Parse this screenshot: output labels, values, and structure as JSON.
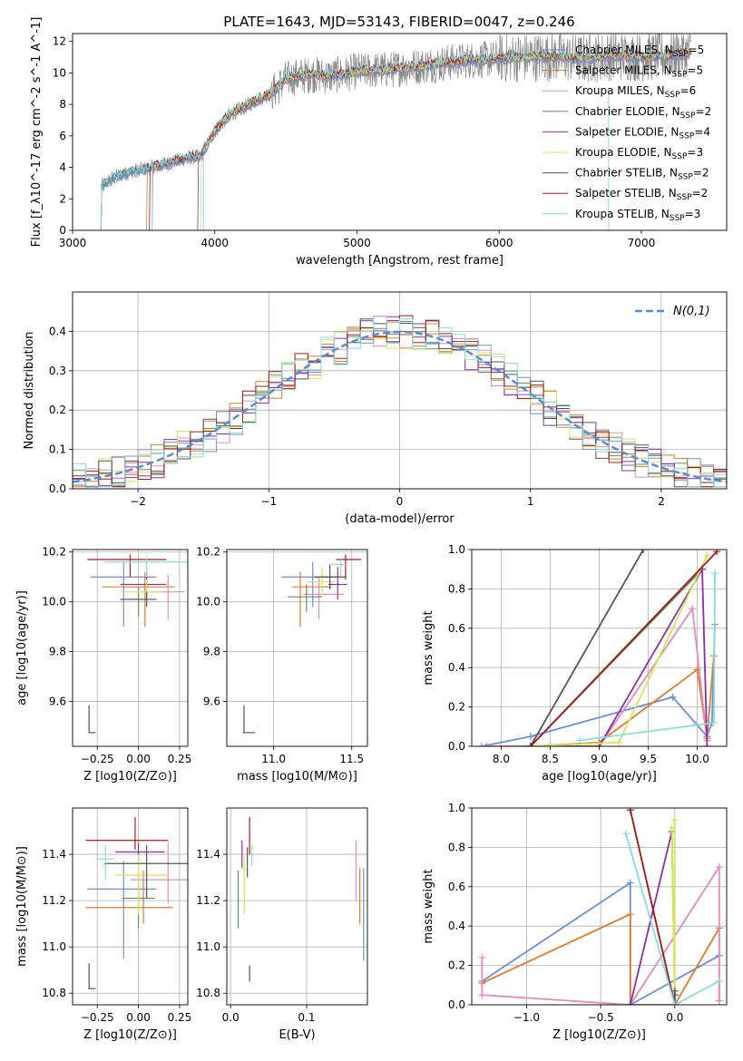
{
  "title": "PLATE=1643, MJD=53143, FIBERID=0047, z=0.246",
  "colors": [
    "#6a8fd8",
    "#e07b2a",
    "#e58ac0",
    "#5f8f5f",
    "#8f2f9f",
    "#d4e65a",
    "#555555",
    "#a41c1c",
    "#85dde0"
  ],
  "chart_data": [
    {
      "id": "spectrum",
      "type": "line",
      "title": "PLATE=1643, MJD=53143, FIBERID=0047, z=0.246",
      "xlabel": "wavelength [Angstrom, rest frame]",
      "ylabel": "Flux [f_λ10^-17 erg cm^-2 s^-1 A^-1]",
      "xlim": [
        3000,
        7600
      ],
      "ylim": [
        0,
        12.5
      ],
      "xticks": [
        3000,
        4000,
        5000,
        6000,
        7000
      ],
      "yticks": [
        0,
        2,
        4,
        6,
        8,
        10,
        12
      ],
      "grid": false,
      "legend_position": "top-right",
      "envelope": {
        "x": [
          3200,
          3300,
          3400,
          3500,
          3600,
          3700,
          3800,
          3900,
          4000,
          4100,
          4200,
          4300,
          4400,
          4500,
          4600,
          4700,
          4800,
          4900,
          5000,
          5200,
          5400,
          5600,
          5800,
          6000,
          6200,
          6400,
          6600,
          6800,
          7000,
          7200,
          7350
        ],
        "y": [
          2.8,
          3.4,
          3.7,
          3.9,
          4.1,
          4.3,
          4.6,
          4.7,
          6.3,
          7.3,
          7.8,
          8.3,
          8.7,
          9.6,
          9.8,
          9.9,
          9.8,
          9.9,
          10.1,
          10.2,
          10.4,
          10.6,
          10.8,
          10.9,
          11.0,
          11.0,
          10.9,
          11.1,
          11.0,
          11.1,
          11.3
        ]
      },
      "series": [
        {
          "name": "Chabrier MILES, N_SSP=5"
        },
        {
          "name": "Salpeter MILES, N_SSP=5"
        },
        {
          "name": "Kroupa MILES, N_SSP=6"
        },
        {
          "name": "Chabrier ELODIE, N_SSP=2"
        },
        {
          "name": "Salpeter ELODIE, N_SSP=4"
        },
        {
          "name": "Kroupa ELODIE, N_SSP=3"
        },
        {
          "name": "Chabrier STELIB, N_SSP=2"
        },
        {
          "name": "Salpeter STELIB, N_SSP=2"
        },
        {
          "name": "Kroupa STELIB, N_SSP=3"
        }
      ],
      "legend_display": [
        {
          "label": "Chabrier MILES, N",
          "sub": "SSP",
          "tail": "=5"
        },
        {
          "label": "Salpeter MILES, N",
          "sub": "SSP",
          "tail": "=5"
        },
        {
          "label": "Kroupa MILES, N",
          "sub": "SSP",
          "tail": "=6"
        },
        {
          "label": "Chabrier ELODIE, N",
          "sub": "SSP",
          "tail": "=2"
        },
        {
          "label": "Salpeter ELODIE, N",
          "sub": "SSP",
          "tail": "=4"
        },
        {
          "label": "Kroupa ELODIE, N",
          "sub": "SSP",
          "tail": "=3"
        },
        {
          "label": "Chabrier STELIB, N",
          "sub": "SSP",
          "tail": "=2"
        },
        {
          "label": "Salpeter STELIB, N",
          "sub": "SSP",
          "tail": "=2"
        },
        {
          "label": "Kroupa STELIB, N",
          "sub": "SSP",
          "tail": "=3"
        }
      ]
    },
    {
      "id": "residuals",
      "type": "line",
      "xlabel": "(data-model)/error",
      "ylabel": "Normed distribution",
      "xlim": [
        -2.5,
        2.5
      ],
      "ylim": [
        0,
        0.5
      ],
      "xticks": [
        -2,
        -1,
        0,
        1,
        2
      ],
      "yticks": [
        0.0,
        0.1,
        0.2,
        0.3,
        0.4
      ],
      "grid": true,
      "legend": "N(0,1)",
      "legend_position": "top-right",
      "bin_width": 0.1
    },
    {
      "id": "age-vs-Z",
      "type": "scatter",
      "xlabel": "Z [log10(Z/Z⊙)]",
      "ylabel": "age [log10(age/yr)]",
      "xlim": [
        -0.4,
        0.3
      ],
      "ylim": [
        9.42,
        10.21
      ],
      "xticks": [
        -0.25,
        0.0,
        0.25
      ],
      "yticks": [
        9.6,
        9.8,
        10.0,
        10.2
      ],
      "grid": true,
      "points": [
        {
          "x": -0.09,
          "y": 10.1,
          "xerr": [
            0.2,
            0.2
          ],
          "yerr": [
            0.2,
            0.06
          ]
        },
        {
          "x": 0.04,
          "y": 10.06,
          "xerr": [
            0.26,
            0.18
          ],
          "yerr": [
            0.16,
            0.06
          ]
        },
        {
          "x": 0.18,
          "y": 10.04,
          "xerr": [
            0.16,
            0.1
          ],
          "yerr": [
            0.11,
            0.07
          ]
        },
        {
          "x": 0.0,
          "y": 10.01,
          "xerr": [
            0.06,
            0.06
          ],
          "yerr": [
            0.07,
            0.05
          ]
        },
        {
          "x": 0.05,
          "y": 10.07,
          "xerr": [
            0.16,
            0.12
          ],
          "yerr": [
            0.05,
            0.05
          ]
        },
        {
          "x": 0.05,
          "y": 10.04,
          "xerr": [
            0.16,
            0.1
          ],
          "yerr": [
            0.05,
            0.05
          ]
        },
        {
          "x": 0.05,
          "y": 10.01,
          "xerr": [
            0.16,
            0.06
          ],
          "yerr": [
            0.03,
            0.03
          ]
        },
        {
          "x": -0.05,
          "y": 10.17,
          "xerr": [
            0.26,
            0.22
          ],
          "yerr": [
            0.07,
            0.02
          ]
        },
        {
          "x": 0.05,
          "y": 10.16,
          "xerr": [
            0.26,
            0.26
          ],
          "yerr": [
            0.06,
            0.02
          ]
        }
      ],
      "reference_error": {
        "x": -0.3,
        "y": 9.475,
        "xerr": 0.04,
        "yerr": 0.11
      }
    },
    {
      "id": "age-vs-mass",
      "type": "scatter",
      "xlabel": "mass [log10(M/M⊙)]",
      "ylabel": "",
      "xlim": [
        10.7,
        11.6
      ],
      "ylim": [
        9.42,
        10.21
      ],
      "xticks": [
        11.0,
        11.5
      ],
      "yticks": [
        9.6,
        9.8,
        10.0,
        10.2
      ],
      "grid": true,
      "points": [
        {
          "x": 11.25,
          "y": 10.1,
          "xerr": [
            0.2,
            0.18
          ],
          "yerr": [
            0.12,
            0.06
          ]
        },
        {
          "x": 11.17,
          "y": 10.06,
          "xerr": [
            0.05,
            0.2
          ],
          "yerr": [
            0.16,
            0.06
          ]
        },
        {
          "x": 11.29,
          "y": 10.03,
          "xerr": [
            0.1,
            0.16
          ],
          "yerr": [
            0.1,
            0.07
          ]
        },
        {
          "x": 11.21,
          "y": 10.02,
          "xerr": [
            0.12,
            0.1
          ],
          "yerr": [
            0.06,
            0.05
          ]
        },
        {
          "x": 11.41,
          "y": 10.07,
          "xerr": [
            0.06,
            0.06
          ],
          "yerr": [
            0.06,
            0.07
          ]
        },
        {
          "x": 11.31,
          "y": 10.08,
          "xerr": [
            0.1,
            0.08
          ],
          "yerr": [
            0.06,
            0.06
          ]
        },
        {
          "x": 11.36,
          "y": 10.1,
          "xerr": [
            0.1,
            0.1
          ],
          "yerr": [
            0.05,
            0.05
          ]
        },
        {
          "x": 11.46,
          "y": 10.17,
          "xerr": [
            0.06,
            0.1
          ],
          "yerr": [
            0.08,
            0.02
          ]
        },
        {
          "x": 11.43,
          "y": 10.15,
          "xerr": [
            0.06,
            0.04
          ],
          "yerr": [
            0.05,
            0.02
          ]
        }
      ],
      "reference_error": {
        "x": 10.81,
        "y": 9.475,
        "xerr": 0.07,
        "yerr": 0.11
      }
    },
    {
      "id": "mass-weight-vs-age",
      "type": "line",
      "xlabel": "age [log10(age/yr)]",
      "ylabel": "mass weight",
      "xlim": [
        7.7,
        10.3
      ],
      "ylim": [
        0.0,
        1.0
      ],
      "xticks": [
        8.0,
        8.5,
        9.0,
        9.5,
        10.0
      ],
      "yticks": [
        0.0,
        0.2,
        0.4,
        0.6,
        0.8,
        1.0
      ],
      "grid": true,
      "series": [
        {
          "x": [
            7.8,
            8.3,
            9.75,
            10.1,
            10.15,
            10.18
          ],
          "y": [
            0.0,
            0.05,
            0.25,
            0.05,
            0.12,
            0.62
          ]
        },
        {
          "x": [
            7.85,
            8.3,
            9.0,
            10.0,
            10.1,
            10.17
          ],
          "y": [
            0.0,
            0.0,
            0.02,
            0.39,
            0.04,
            0.46
          ]
        },
        {
          "x": [
            7.8,
            9.0,
            9.95,
            10.1
          ],
          "y": [
            0.0,
            0.0,
            0.7,
            0.03
          ]
        },
        {
          "x": [
            8.3,
            10.05
          ],
          "y": [
            0.0,
            0.9
          ]
        },
        {
          "x": [
            8.3,
            9.0,
            10.05,
            10.1
          ],
          "y": [
            0.0,
            0.0,
            0.9,
            0.0
          ]
        },
        {
          "x": [
            8.3,
            9.2,
            10.1
          ],
          "y": [
            0.0,
            0.02,
            0.97
          ]
        },
        {
          "x": [
            8.3,
            9.45
          ],
          "y": [
            0.0,
            1.0
          ]
        },
        {
          "x": [
            8.3,
            10.2
          ],
          "y": [
            0.0,
            0.99
          ]
        },
        {
          "x": [
            8.8,
            10.17,
            10.18
          ],
          "y": [
            0.03,
            0.12,
            0.88
          ]
        }
      ]
    },
    {
      "id": "mass-vs-Z",
      "type": "scatter",
      "xlabel": "Z [log10(Z/Z⊙)]",
      "ylabel": "mass [log10(M/M⊙)]",
      "xlim": [
        -0.4,
        0.3
      ],
      "ylim": [
        10.75,
        11.6
      ],
      "xticks": [
        -0.25,
        0.0,
        0.25
      ],
      "yticks": [
        10.8,
        11.0,
        11.2,
        11.4
      ],
      "grid": true,
      "points": [
        {
          "x": -0.09,
          "y": 11.25,
          "xerr": [
            0.22,
            0.2
          ],
          "yerr": [
            0.3,
            0.12
          ]
        },
        {
          "x": 0.03,
          "y": 11.17,
          "xerr": [
            0.35,
            0.18
          ],
          "yerr": [
            0.07,
            0.16
          ]
        },
        {
          "x": 0.18,
          "y": 11.29,
          "xerr": [
            0.23,
            0.12
          ],
          "yerr": [
            0.1,
            0.16
          ]
        },
        {
          "x": 0.0,
          "y": 11.21,
          "xerr": [
            0.1,
            0.1
          ],
          "yerr": [
            0.13,
            0.1
          ]
        },
        {
          "x": 0.0,
          "y": 11.41,
          "xerr": [
            0.14,
            0.16
          ],
          "yerr": [
            0.04,
            0.04
          ]
        },
        {
          "x": 0.0,
          "y": 11.31,
          "xerr": [
            0.14,
            0.18
          ],
          "yerr": [
            0.17,
            0.09
          ]
        },
        {
          "x": 0.05,
          "y": 11.36,
          "xerr": [
            0.26,
            0.25
          ],
          "yerr": [
            0.15,
            0.08
          ]
        },
        {
          "x": -0.02,
          "y": 11.46,
          "xerr": [
            0.3,
            0.2
          ],
          "yerr": [
            0.04,
            0.1
          ]
        },
        {
          "x": -0.2,
          "y": 11.38,
          "xerr": [
            0.05,
            0.05
          ],
          "yerr": [
            0.09,
            0.06
          ]
        }
      ],
      "reference_error": {
        "x": -0.3,
        "y": 10.82,
        "xerr": 0.04,
        "yerr": 0.11
      }
    },
    {
      "id": "mass-vs-EBV",
      "type": "scatter",
      "xlabel": "E(B-V)",
      "ylabel": "",
      "xlim": [
        -0.005,
        0.18
      ],
      "ylim": [
        10.75,
        11.6
      ],
      "xticks": [
        0.0,
        0.1
      ],
      "yticks": [
        10.8,
        11.0,
        11.2,
        11.4
      ],
      "grid": true,
      "points": [
        {
          "x": 0.175,
          "y": 11.2,
          "yerr": [
            0.26,
            0.14
          ]
        },
        {
          "x": 0.17,
          "y": 11.24,
          "yerr": [
            0.14,
            0.1
          ]
        },
        {
          "x": 0.165,
          "y": 11.33,
          "yerr": [
            0.13,
            0.13
          ]
        },
        {
          "x": 0.01,
          "y": 11.2,
          "yerr": [
            0.12,
            0.13
          ]
        },
        {
          "x": 0.015,
          "y": 11.4,
          "yerr": [
            0.06,
            0.06
          ]
        },
        {
          "x": 0.018,
          "y": 11.3,
          "yerr": [
            0.16,
            0.1
          ]
        },
        {
          "x": 0.022,
          "y": 11.37,
          "yerr": [
            0.07,
            0.06
          ]
        },
        {
          "x": 0.025,
          "y": 11.47,
          "yerr": [
            0.07,
            0.09
          ]
        },
        {
          "x": 0.028,
          "y": 11.4,
          "yerr": [
            0.05,
            0.04
          ]
        }
      ],
      "reference_error": {
        "x": 0.025,
        "y": 10.85,
        "xerr": 0.0,
        "yerr": 0.07
      }
    },
    {
      "id": "mass-weight-vs-Z",
      "type": "line",
      "xlabel": "Z [log10(Z/Z⊙)]",
      "ylabel": "mass weight",
      "xlim": [
        -1.37,
        0.35
      ],
      "ylim": [
        0.0,
        1.0
      ],
      "xticks": [
        -1.0,
        -0.5,
        0.0
      ],
      "yticks": [
        0.0,
        0.2,
        0.4,
        0.6,
        0.8,
        1.0
      ],
      "grid": true,
      "series": [
        {
          "x": [
            -1.3,
            -0.3,
            -0.3,
            0.3
          ],
          "y": [
            0.12,
            0.62,
            0.0,
            0.25
          ]
        },
        {
          "x": [
            -1.3,
            -0.3,
            -0.3,
            0.0,
            0.3,
            0.3
          ],
          "y": [
            0.11,
            0.46,
            0.0,
            0.0,
            0.39,
            0.02
          ]
        },
        {
          "x": [
            -1.3,
            -1.3,
            -0.3,
            0.3,
            0.3
          ],
          "y": [
            0.24,
            0.05,
            0.0,
            0.7,
            0.02
          ]
        },
        {
          "x": [
            -0.3,
            0.0
          ],
          "y": [
            0.99,
            0.0
          ]
        },
        {
          "x": [
            -0.3,
            -0.02,
            0.0,
            0.0
          ],
          "y": [
            0.0,
            0.88,
            0.05,
            0.0
          ]
        },
        {
          "x": [
            0.0,
            0.0,
            -0.02
          ],
          "y": [
            0.94,
            0.0,
            0.9
          ]
        },
        {
          "x": [
            0.0,
            0.0
          ],
          "y": [
            0.07,
            0.0
          ]
        },
        {
          "x": [
            -0.3,
            0.0
          ],
          "y": [
            0.99,
            0.0
          ]
        },
        {
          "x": [
            -0.33,
            0.0,
            0.3
          ],
          "y": [
            0.87,
            0.0,
            0.12
          ]
        }
      ]
    }
  ]
}
